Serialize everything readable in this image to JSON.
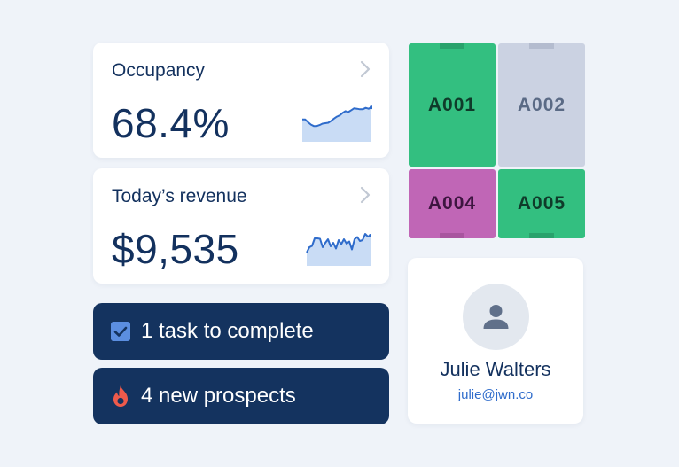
{
  "occupancy": {
    "title": "Occupancy",
    "value": "68.4%",
    "sparkline": [
      48,
      48,
      42,
      37,
      34,
      34,
      36,
      39,
      40,
      41,
      45,
      50,
      54,
      57,
      62,
      66,
      64,
      68,
      72,
      71,
      70,
      70,
      73,
      71,
      74
    ]
  },
  "revenue": {
    "title": "Today’s revenue",
    "value": "$9,535",
    "sparkline": [
      30,
      42,
      45,
      62,
      62,
      61,
      42,
      52,
      60,
      44,
      52,
      39,
      58,
      49,
      60,
      50,
      55,
      37,
      60,
      65,
      56,
      58,
      72,
      66,
      68
    ]
  },
  "tasks": {
    "label": "1 task to complete",
    "icon": "checkbox-icon"
  },
  "prospects": {
    "label": "4 new prospects",
    "icon": "flame-icon"
  },
  "units": [
    {
      "id": "A001",
      "color": "#33bf80",
      "text_color": "#0f3b2a",
      "tab_color": "#29a26c"
    },
    {
      "id": "A002",
      "color": "#cbd2e2",
      "text_color": "#5a6a85",
      "tab_color": "#b4bccf"
    },
    {
      "id": "A004",
      "color": "#c066b6",
      "text_color": "#3d1540",
      "tab_color": "#a8559f"
    },
    {
      "id": "A005",
      "color": "#33bf80",
      "text_color": "#0f3b2a",
      "tab_color": "#29a26c"
    }
  ],
  "user": {
    "name": "Julie Walters",
    "email": "julie@jwn.co"
  },
  "colors": {
    "navy": "#14335f",
    "spark_line": "#2f6ccb",
    "spark_fill": "#c9dcf5",
    "bg": "#eff3f9"
  }
}
